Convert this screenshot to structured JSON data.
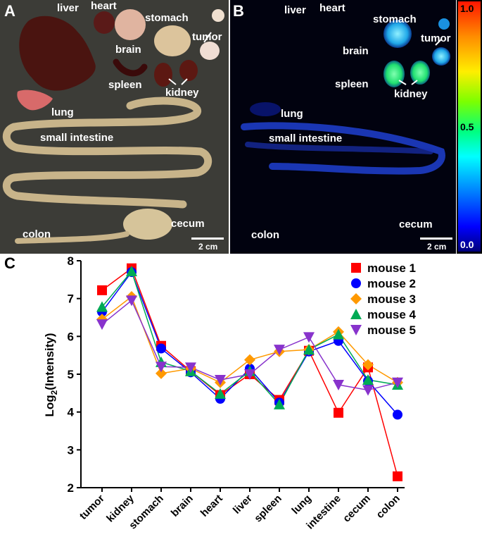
{
  "panel_a": {
    "letter": "A",
    "organs": {
      "liver": "liver",
      "heart": "heart",
      "stomach": "stomach",
      "brain": "brain",
      "tumor": "tumor",
      "spleen": "spleen",
      "kidney": "kidney",
      "lung": "lung",
      "small_intestine": "small intestine",
      "cecum": "cecum",
      "colon": "colon"
    },
    "scale_bar": "2 cm"
  },
  "panel_b": {
    "letter": "B",
    "organs": {
      "liver": "liver",
      "heart": "heart",
      "stomach": "stomach",
      "brain": "brain",
      "tumor": "tumor",
      "spleen": "spleen",
      "kidney": "kidney",
      "lung": "lung",
      "small_intestine": "small intestine",
      "cecum": "cecum",
      "colon": "colon"
    },
    "scale_bar": "2 cm",
    "colorbar_ticks": [
      "1.0",
      "0.5",
      "0.0"
    ]
  },
  "panel_c": {
    "letter": "C"
  },
  "chart_data": {
    "type": "line",
    "title": "",
    "xlabel": "",
    "ylabel_main": "Log",
    "ylabel_sub": "2",
    "ylabel_tail": "(Intensity)",
    "ylim": [
      2,
      8
    ],
    "yticks": [
      "2",
      "3",
      "4",
      "5",
      "6",
      "7",
      "8"
    ],
    "categories": [
      "tumor",
      "kidney",
      "stomach",
      "brain",
      "heart",
      "liver",
      "spleen",
      "lung",
      "intestine",
      "cecum",
      "colon"
    ],
    "series": [
      {
        "name": "mouse 1",
        "color": "#ff0000",
        "marker": "square",
        "values": [
          7.22,
          7.8,
          5.75,
          5.08,
          4.45,
          5.0,
          4.32,
          5.62,
          3.98,
          5.18,
          2.3
        ]
      },
      {
        "name": "mouse 2",
        "color": "#0000ff",
        "marker": "circle",
        "values": [
          6.65,
          7.7,
          5.68,
          5.05,
          4.35,
          5.15,
          4.25,
          5.6,
          5.88,
          4.82,
          3.93
        ]
      },
      {
        "name": "mouse 3",
        "color": "#ff9900",
        "marker": "diamond",
        "values": [
          6.45,
          7.05,
          5.02,
          5.15,
          4.78,
          5.38,
          5.6,
          5.65,
          6.12,
          5.25,
          4.78
        ]
      },
      {
        "name": "mouse 4",
        "color": "#00aa55",
        "marker": "triangle-up",
        "values": [
          6.78,
          7.72,
          5.32,
          5.08,
          4.48,
          5.08,
          4.2,
          5.65,
          6.05,
          4.85,
          4.72
        ]
      },
      {
        "name": "mouse 5",
        "color": "#8833cc",
        "marker": "triangle-down",
        "values": [
          6.32,
          6.95,
          5.2,
          5.18,
          4.85,
          5.0,
          5.65,
          5.98,
          4.72,
          4.58,
          4.78
        ]
      }
    ]
  }
}
